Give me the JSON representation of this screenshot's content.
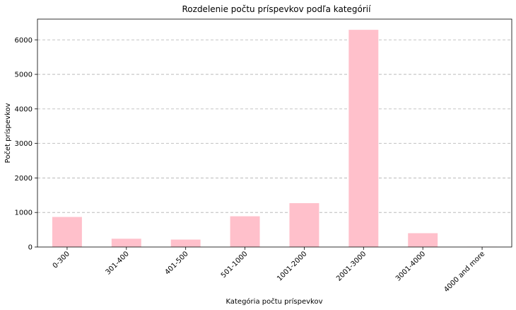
{
  "chart_data": {
    "type": "bar",
    "title": "Rozdelenie počtu príspevkov podľa kategórií",
    "xlabel": "Kategória počtu príspevkov",
    "ylabel": "Počet príspevkov",
    "categories": [
      "0-300",
      "301-400",
      "401-500",
      "501-1000",
      "1001-2000",
      "2001-3000",
      "3001-4000",
      "4000 and more"
    ],
    "values": [
      870,
      240,
      215,
      890,
      1270,
      6290,
      400,
      5
    ],
    "ylim": [
      0,
      6600
    ],
    "yticks": [
      0,
      1000,
      2000,
      3000,
      4000,
      5000,
      6000
    ],
    "bar_color": "#ffc0cb",
    "grid": "horizontal-dashed",
    "legend": "none"
  }
}
